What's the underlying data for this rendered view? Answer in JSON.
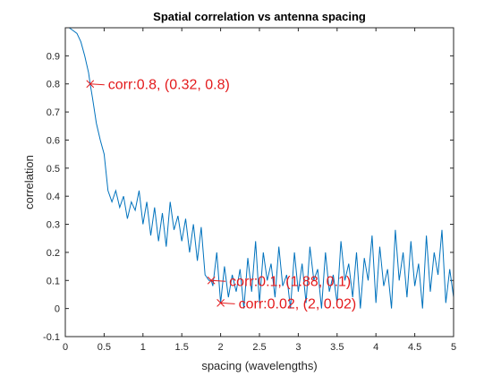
{
  "chart_data": {
    "type": "line",
    "title": "Spatial correlation vs antenna spacing",
    "xlabel": "spacing (wavelengths)",
    "ylabel": "correlation",
    "xlim": [
      0,
      5
    ],
    "ylim": [
      -0.1,
      1.0
    ],
    "xticks": [
      0,
      0.5,
      1,
      1.5,
      2,
      2.5,
      3,
      3.5,
      4,
      4.5,
      5
    ],
    "xtick_labels": [
      "0",
      "0.5",
      "1",
      "1.5",
      "2",
      "2.5",
      "3",
      "3.5",
      "4",
      "4.5",
      "5"
    ],
    "yticks": [
      -0.1,
      0,
      0.1,
      0.2,
      0.3,
      0.4,
      0.5,
      0.6,
      0.7,
      0.8,
      0.9
    ],
    "ytick_labels": [
      "-0.1",
      "0",
      "0.1",
      "0.2",
      "0.3",
      "0.4",
      "0.5",
      "0.6",
      "0.7",
      "0.8",
      "0.9"
    ],
    "grid": false,
    "line_color": "#0072BD",
    "annotation_color": "#E31A1C",
    "series": [
      {
        "x": [
          0,
          0.05,
          0.1,
          0.15,
          0.2,
          0.25,
          0.3,
          0.32,
          0.35,
          0.4,
          0.45,
          0.5,
          0.55,
          0.6,
          0.65,
          0.7,
          0.75,
          0.8,
          0.85,
          0.9,
          0.95,
          1.0,
          1.05,
          1.1,
          1.15,
          1.2,
          1.25,
          1.3,
          1.35,
          1.4,
          1.45,
          1.5,
          1.55,
          1.6,
          1.65,
          1.7,
          1.75,
          1.8,
          1.85,
          1.88,
          1.9,
          1.95,
          2.0,
          2.05,
          2.1,
          2.15,
          2.2,
          2.25,
          2.3,
          2.35,
          2.4,
          2.45,
          2.5,
          2.55,
          2.6,
          2.65,
          2.7,
          2.75,
          2.8,
          2.85,
          2.9,
          2.95,
          3.0,
          3.05,
          3.1,
          3.15,
          3.2,
          3.25,
          3.3,
          3.35,
          3.4,
          3.45,
          3.5,
          3.55,
          3.6,
          3.65,
          3.7,
          3.75,
          3.8,
          3.85,
          3.9,
          3.95,
          4.0,
          4.05,
          4.1,
          4.15,
          4.2,
          4.25,
          4.3,
          4.35,
          4.4,
          4.45,
          4.5,
          4.55,
          4.6,
          4.65,
          4.7,
          4.75,
          4.8,
          4.85,
          4.9,
          4.95,
          5.0
        ],
        "y": [
          1.0,
          1.0,
          0.99,
          0.98,
          0.95,
          0.9,
          0.84,
          0.8,
          0.75,
          0.66,
          0.6,
          0.55,
          0.42,
          0.38,
          0.42,
          0.36,
          0.4,
          0.32,
          0.38,
          0.35,
          0.42,
          0.3,
          0.38,
          0.26,
          0.36,
          0.24,
          0.34,
          0.22,
          0.38,
          0.28,
          0.33,
          0.24,
          0.32,
          0.2,
          0.3,
          0.17,
          0.29,
          0.12,
          0.1,
          0.1,
          0.08,
          0.2,
          0.02,
          0.15,
          0.04,
          0.12,
          0.06,
          0.14,
          0.0,
          0.18,
          0.06,
          0.24,
          0.02,
          0.2,
          0.1,
          0.16,
          0.04,
          0.22,
          0.08,
          0.12,
          0.0,
          0.2,
          0.06,
          0.16,
          0.02,
          0.22,
          0.1,
          0.14,
          0.0,
          0.2,
          0.06,
          0.12,
          0.02,
          0.24,
          0.1,
          0.16,
          0.04,
          0.2,
          0.0,
          0.18,
          0.1,
          0.26,
          0.02,
          0.22,
          0.08,
          0.14,
          0.0,
          0.28,
          0.1,
          0.2,
          0.04,
          0.24,
          0.08,
          0.16,
          0.0,
          0.26,
          0.06,
          0.2,
          0.12,
          0.28,
          0.02,
          0.14,
          0.04
        ]
      }
    ],
    "annotations": [
      {
        "x": 0.32,
        "y": 0.8,
        "text": "corr:0.8, (0.32, 0.8)"
      },
      {
        "x": 1.88,
        "y": 0.1,
        "text": "corr:0.1, (1.88, 0.1)"
      },
      {
        "x": 2,
        "y": 0.02,
        "text": "corr:0.02, (2, 0.02)"
      }
    ]
  }
}
